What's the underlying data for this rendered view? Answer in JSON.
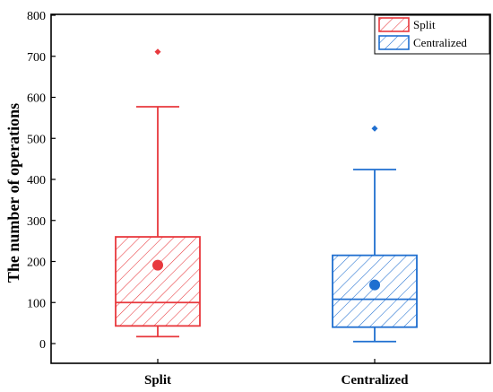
{
  "chart_data": {
    "type": "box",
    "title": "",
    "xlabel": "",
    "ylabel": "The number of operations",
    "ylim": [
      0,
      800
    ],
    "yticks": [
      0,
      100,
      200,
      300,
      400,
      500,
      600,
      700,
      800
    ],
    "grid": false,
    "legend_position": "top-right",
    "categories": [
      "Split",
      "Centralized"
    ],
    "series": [
      {
        "name": "Split",
        "color": "#e8383d",
        "whisker_low": 17,
        "q1": 43,
        "median": 100,
        "q3": 260,
        "whisker_high": 577,
        "mean": 191,
        "outliers": [
          711
        ]
      },
      {
        "name": "Centralized",
        "color": "#1f6fd0",
        "whisker_low": 5,
        "q1": 40,
        "median": 108,
        "q3": 215,
        "whisker_high": 424,
        "mean": 143,
        "outliers": [
          524
        ]
      }
    ]
  }
}
